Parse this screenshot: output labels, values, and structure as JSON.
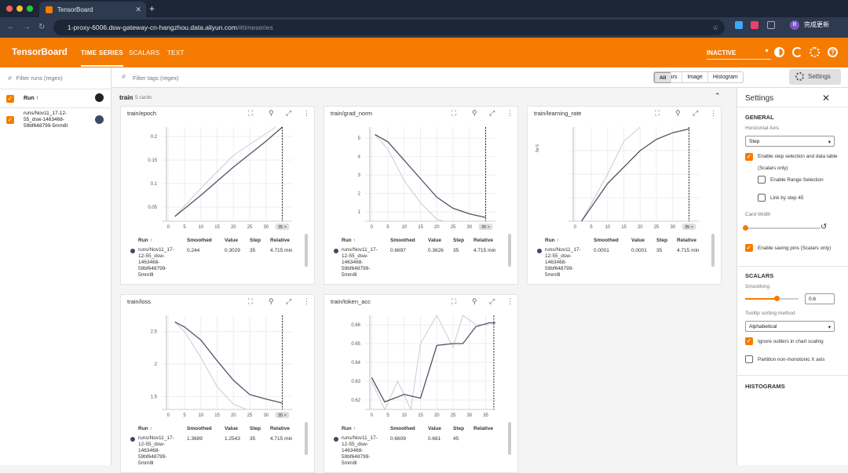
{
  "browser": {
    "tab_title": "TensorBoard",
    "url_host": "1-proxy-6006.dsw-gateway-cn-hangzhou.data.aliyun.com",
    "url_path": "/#timeseries",
    "profile": "B",
    "update_label": "完成更新"
  },
  "toolbar": {
    "app_name": "TensorBoard",
    "nav": [
      "TIME SERIES",
      "SCALARS",
      "TEXT"
    ],
    "active_nav": "TIME SERIES",
    "run_status": "INACTIVE"
  },
  "runs_panel": {
    "filter_placeholder": "Filter runs (regex)",
    "header": "Run ↑",
    "run_name": "runs/Nov11_17-12-55_dsw-1463468-59bf648799-5mm8l",
    "run_lines": [
      "runs/Nov11_17-12-",
      "55_dsw-1463468-",
      "59bf648799-5mm8l"
    ],
    "run_color": "#3b4a66"
  },
  "tag_filter": {
    "placeholder": "Filter tags (regex)",
    "chips": [
      "All",
      "Scalars",
      "Image",
      "Histogram"
    ],
    "selected_chip": "All",
    "settings_button": "Settings"
  },
  "group": {
    "name": "train",
    "count": "5 cards"
  },
  "table_headers": {
    "run": "Run ↑",
    "smoothed": "Smoothed",
    "value": "Value",
    "step": "Step",
    "relative": "Relative"
  },
  "table_run_lines": [
    "runs/Nov11_17-",
    "12-55_dsw-",
    "1463468-",
    "59bf648799-",
    "5mm8l"
  ],
  "cards": [
    {
      "title": "train/epoch",
      "row": {
        "smoothed": "0.244",
        "value": "0.3029",
        "step": "35",
        "relative": "4.715 min"
      },
      "step_marker": "35 ×"
    },
    {
      "title": "train/grad_norm",
      "row": {
        "smoothed": "0.6697",
        "value": "0.3626",
        "step": "35",
        "relative": "4.715 min"
      },
      "step_marker": "35 ×"
    },
    {
      "title": "train/learning_rate",
      "row": {
        "smoothed": "0.0001",
        "value": "0.0001",
        "step": "35",
        "relative": "4.715 min"
      },
      "step_marker": "35 ×"
    },
    {
      "title": "train/loss",
      "row": {
        "smoothed": "1.3689",
        "value": "1.2543",
        "step": "35",
        "relative": "4.715 min"
      },
      "step_marker": "35 ×"
    },
    {
      "title": "train/token_acc",
      "row": {
        "smoothed": "0.6609",
        "value": "0.661",
        "step": "45",
        "relative": ""
      },
      "step_marker": ""
    }
  ],
  "chart_data": [
    {
      "type": "line",
      "title": "train/epoch",
      "x_ticks": [
        "0",
        "5",
        "10",
        "15",
        "20",
        "25",
        "30",
        "35"
      ],
      "y_ticks": [
        "0.05",
        "0.1",
        "0.15",
        "0.2"
      ],
      "xlim": [
        -2,
        38
      ],
      "ylim": [
        0.02,
        0.22
      ],
      "series": [
        {
          "x": [
            2,
            10,
            20,
            30,
            35
          ],
          "y": [
            0.03,
            0.075,
            0.135,
            0.19,
            0.22
          ]
        },
        {
          "x": [
            2,
            10,
            20,
            33
          ],
          "y": [
            0.03,
            0.09,
            0.16,
            0.225
          ]
        }
      ]
    },
    {
      "title": "train/grad_norm",
      "x_ticks": [
        "0",
        "5",
        "10",
        "15",
        "20",
        "25",
        "30",
        "35"
      ],
      "y_ticks": [
        "1",
        "2",
        "3",
        "4",
        "5"
      ],
      "xlim": [
        -2,
        38
      ],
      "ylim": [
        0.5,
        5.6
      ],
      "series": [
        {
          "x": [
            1,
            5,
            10,
            15,
            20,
            25,
            30,
            35
          ],
          "y": [
            5.2,
            4.8,
            3.8,
            2.8,
            1.8,
            1.2,
            0.9,
            0.7
          ]
        },
        {
          "x": [
            1,
            5,
            10,
            15,
            20,
            22
          ],
          "y": [
            5.2,
            4.4,
            2.7,
            1.5,
            0.6,
            0.5
          ]
        }
      ]
    },
    {
      "type": "line",
      "title": "train/learning_rate",
      "x_ticks": [
        "0",
        "5",
        "10",
        "15",
        "20",
        "25",
        "30",
        "35"
      ],
      "y_ticks": [
        "",
        "",
        ""
      ],
      "y_prefix": "5e-5",
      "xlim": [
        -2,
        38
      ],
      "ylim": [
        0,
        1
      ],
      "series": [
        {
          "x": [
            2,
            10,
            20,
            25,
            30,
            35
          ],
          "y": [
            0,
            0.4,
            0.75,
            0.87,
            0.94,
            0.98
          ]
        },
        {
          "x": [
            2,
            10,
            15,
            20
          ],
          "y": [
            0,
            0.5,
            0.85,
            1.0
          ]
        }
      ]
    },
    {
      "type": "line",
      "title": "train/loss",
      "x_ticks": [
        "0",
        "5",
        "10",
        "15",
        "20",
        "25",
        "30",
        "35"
      ],
      "y_ticks": [
        "1.5",
        "2",
        "2.5"
      ],
      "xlim": [
        -2,
        38
      ],
      "ylim": [
        1.3,
        2.75
      ],
      "series": [
        {
          "x": [
            2,
            5,
            10,
            15,
            20,
            25,
            30,
            35
          ],
          "y": [
            2.65,
            2.57,
            2.37,
            2.05,
            1.75,
            1.53,
            1.46,
            1.4
          ]
        },
        {
          "x": [
            2,
            5,
            10,
            15,
            20,
            24
          ],
          "y": [
            2.65,
            2.5,
            2.1,
            1.65,
            1.38,
            1.3
          ]
        }
      ]
    },
    {
      "type": "line",
      "title": "train/token_acc",
      "x_ticks": [
        "0",
        "5",
        "10",
        "15",
        "20",
        "25",
        "30",
        "35"
      ],
      "y_ticks": [
        "0.62",
        "0.63",
        "0.64",
        "0.65",
        "0.66"
      ],
      "xlim": [
        -2,
        38
      ],
      "ylim": [
        0.615,
        0.665
      ],
      "series": [
        {
          "x": [
            0,
            4,
            10,
            15,
            20,
            25,
            28,
            32,
            36,
            38
          ],
          "y": [
            0.632,
            0.619,
            0.623,
            0.621,
            0.649,
            0.65,
            0.65,
            0.659,
            0.661,
            0.661
          ]
        },
        {
          "x": [
            0,
            4,
            8,
            12,
            15,
            20,
            25,
            28,
            32,
            36
          ],
          "y": [
            0.63,
            0.61,
            0.63,
            0.615,
            0.65,
            0.665,
            0.648,
            0.665,
            0.66,
            0.66
          ]
        }
      ]
    }
  ],
  "settings": {
    "title": "Settings",
    "general": "GENERAL",
    "horizontal_axis": "Horizontal Axis",
    "axis_value": "Step",
    "enable_step": "Enable step selection and data table",
    "scalars_only": "(Scalars only)",
    "enable_range": "Enable Range Selection",
    "link_step": "Link by step 45",
    "card_width": "Card Width",
    "saving_pins": "Enable saving pins (Scalars only)",
    "scalars": "SCALARS",
    "smoothing": "Smoothing",
    "smoothing_value": "0.6",
    "smoothing_level": 0.6,
    "tooltip_sort": "Tooltip sorting method",
    "sort_value": "Alphabetical",
    "ignore_outliers": "Ignore outliers in chart scaling",
    "partition": "Partition non-monotonic X axis",
    "histograms": "HISTOGRAMS"
  }
}
